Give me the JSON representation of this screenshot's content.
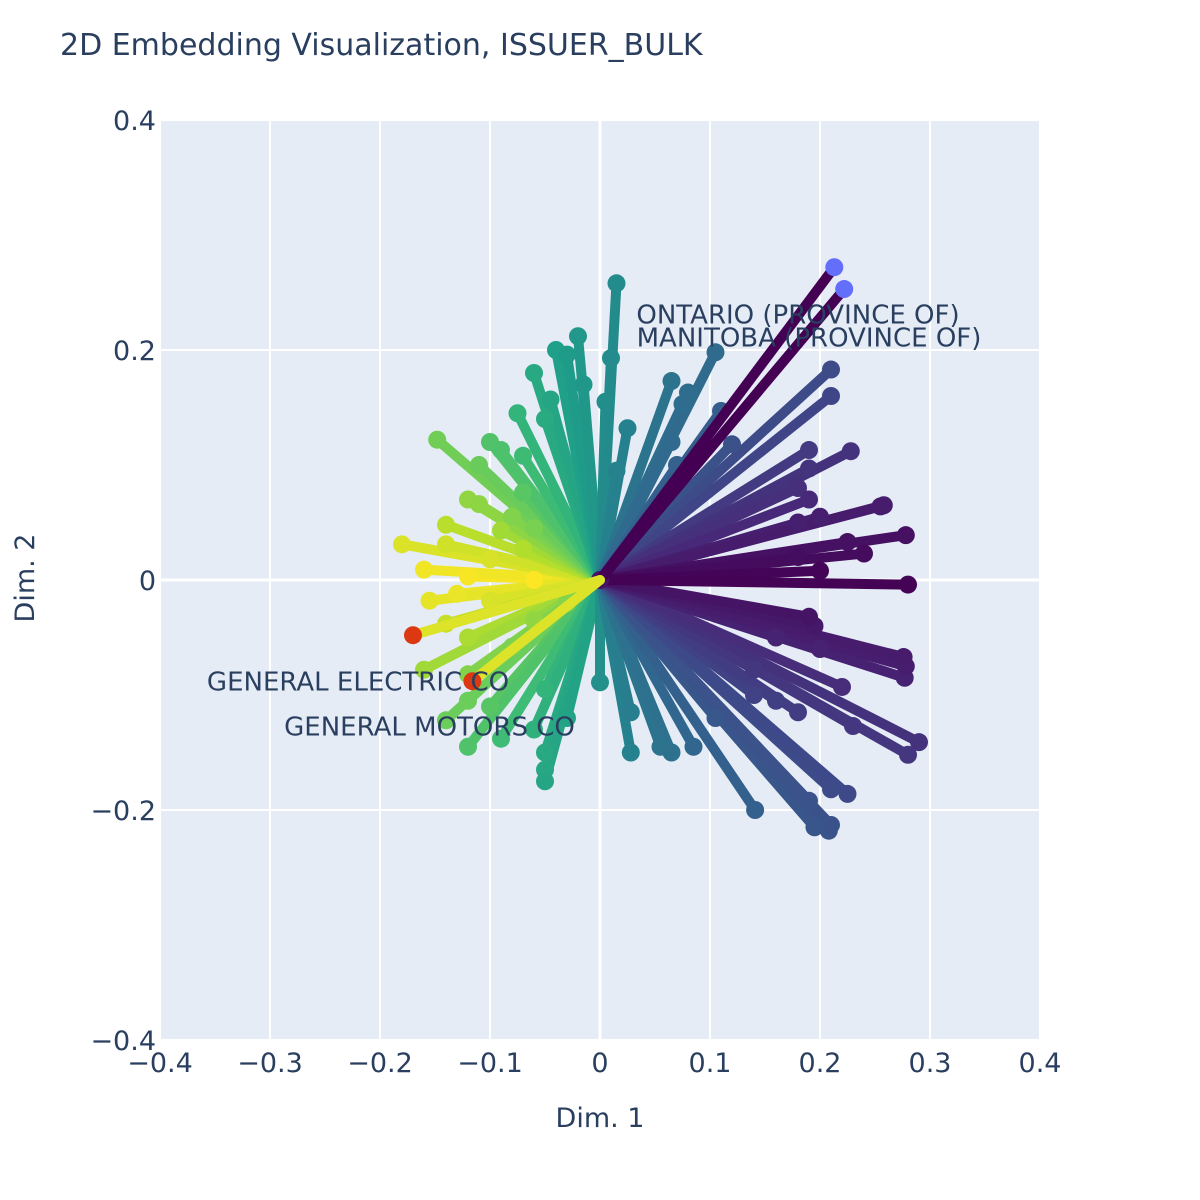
{
  "chart_data": {
    "type": "scatter",
    "title": "2D Embedding Visualization, ISSUER_BULK",
    "xlabel": "Dim. 1",
    "ylabel": "Dim. 2",
    "xlim": [
      -0.4,
      0.4
    ],
    "ylim": [
      -0.4,
      0.4
    ],
    "xticks": [
      -0.4,
      -0.3,
      -0.2,
      -0.1,
      0,
      0.1,
      0.2,
      0.3,
      0.4
    ],
    "xtick_labels": [
      "−0.4",
      "−0.3",
      "−0.2",
      "−0.1",
      "0",
      "0.1",
      "0.2",
      "0.3",
      "0.4"
    ],
    "yticks": [
      -0.4,
      -0.2,
      0,
      0.2,
      0.4
    ],
    "ytick_labels": [
      "−0.4",
      "−0.2",
      "0",
      "0.2",
      "0.4"
    ],
    "grid": true,
    "origin": [
      0,
      0
    ],
    "colorscale": "viridis",
    "background_color": "#e5ecf6",
    "highlight_colors": {
      "ontario_manitoba": "#636efa",
      "general": "#dc3912"
    },
    "highlighted": [
      {
        "name": "ONTARIO (PROVINCE OF)",
        "x": 0.213,
        "y": 0.272,
        "color": "#636efa",
        "label": "ONTARIO (PROVINCE OF)",
        "label_x": 0.18,
        "label_y": 0.223
      },
      {
        "name": "MANITOBA (PROVINCE OF)",
        "x": 0.222,
        "y": 0.253,
        "color": "#636efa",
        "label": "MANITOBA (PROVINCE OF)",
        "label_x": 0.19,
        "label_y": 0.203
      },
      {
        "name": "GENERAL ELECTRIC CO",
        "x": -0.17,
        "y": -0.048,
        "color": "#dc3912",
        "label": "GENERAL ELECTRIC CO",
        "label_x": -0.22,
        "label_y": -0.096
      },
      {
        "name": "GENERAL MOTORS CO",
        "x": -0.116,
        "y": -0.088,
        "color": "#dc3912",
        "label": "GENERAL MOTORS CO",
        "label_x": -0.155,
        "label_y": -0.135
      }
    ],
    "points": [
      {
        "x": 0.015,
        "y": 0.258
      },
      {
        "x": -0.02,
        "y": 0.212
      },
      {
        "x": -0.04,
        "y": 0.2
      },
      {
        "x": -0.03,
        "y": 0.196
      },
      {
        "x": 0.01,
        "y": 0.193
      },
      {
        "x": 0.105,
        "y": 0.198
      },
      {
        "x": 0.065,
        "y": 0.173
      },
      {
        "x": -0.06,
        "y": 0.18
      },
      {
        "x": -0.015,
        "y": 0.17
      },
      {
        "x": 0.21,
        "y": 0.183
      },
      {
        "x": 0.21,
        "y": 0.16
      },
      {
        "x": 0.08,
        "y": 0.163
      },
      {
        "x": -0.045,
        "y": 0.157
      },
      {
        "x": -0.075,
        "y": 0.145
      },
      {
        "x": 0.005,
        "y": 0.155
      },
      {
        "x": 0.11,
        "y": 0.147
      },
      {
        "x": 0.075,
        "y": 0.153
      },
      {
        "x": -0.05,
        "y": 0.14
      },
      {
        "x": 0.025,
        "y": 0.132
      },
      {
        "x": -0.1,
        "y": 0.12
      },
      {
        "x": -0.148,
        "y": 0.122
      },
      {
        "x": 0.065,
        "y": 0.12
      },
      {
        "x": 0.12,
        "y": 0.118
      },
      {
        "x": -0.09,
        "y": 0.113
      },
      {
        "x": 0.228,
        "y": 0.112
      },
      {
        "x": 0.19,
        "y": 0.113
      },
      {
        "x": -0.07,
        "y": 0.108
      },
      {
        "x": 0.015,
        "y": 0.095
      },
      {
        "x": 0.07,
        "y": 0.1
      },
      {
        "x": 0.19,
        "y": 0.097
      },
      {
        "x": -0.11,
        "y": 0.1
      },
      {
        "x": 0.18,
        "y": 0.08
      },
      {
        "x": -0.07,
        "y": 0.076
      },
      {
        "x": 0.19,
        "y": 0.07
      },
      {
        "x": -0.12,
        "y": 0.07
      },
      {
        "x": 0.258,
        "y": 0.065
      },
      {
        "x": 0.255,
        "y": 0.064
      },
      {
        "x": -0.11,
        "y": 0.066
      },
      {
        "x": 0.2,
        "y": 0.055
      },
      {
        "x": -0.08,
        "y": 0.055
      },
      {
        "x": 0.18,
        "y": 0.05
      },
      {
        "x": -0.14,
        "y": 0.048
      },
      {
        "x": -0.06,
        "y": 0.045
      },
      {
        "x": 0.278,
        "y": 0.039
      },
      {
        "x": -0.09,
        "y": 0.043
      },
      {
        "x": 0.225,
        "y": 0.033
      },
      {
        "x": -0.18,
        "y": 0.031
      },
      {
        "x": -0.14,
        "y": 0.031
      },
      {
        "x": -0.07,
        "y": 0.027
      },
      {
        "x": 0.24,
        "y": 0.023
      },
      {
        "x": 0.18,
        "y": 0.02
      },
      {
        "x": -0.1,
        "y": 0.018
      },
      {
        "x": -0.16,
        "y": 0.009
      },
      {
        "x": -0.12,
        "y": 0.003
      },
      {
        "x": 0.2,
        "y": 0.008
      },
      {
        "x": 0.28,
        "y": -0.004
      },
      {
        "x": -0.06,
        "y": 0.0
      },
      {
        "x": -0.13,
        "y": -0.012
      },
      {
        "x": -0.155,
        "y": -0.018
      },
      {
        "x": -0.1,
        "y": -0.018
      },
      {
        "x": -0.03,
        "y": -0.02
      },
      {
        "x": 0.19,
        "y": -0.032
      },
      {
        "x": -0.14,
        "y": -0.038
      },
      {
        "x": 0.195,
        "y": -0.04
      },
      {
        "x": -0.06,
        "y": -0.035
      },
      {
        "x": 0.16,
        "y": -0.05
      },
      {
        "x": -0.12,
        "y": -0.05
      },
      {
        "x": 0.2,
        "y": -0.06
      },
      {
        "x": -0.08,
        "y": -0.058
      },
      {
        "x": 0.276,
        "y": -0.067
      },
      {
        "x": 0.278,
        "y": -0.075
      },
      {
        "x": 0.277,
        "y": -0.085
      },
      {
        "x": -0.16,
        "y": -0.078
      },
      {
        "x": 0.14,
        "y": -0.078
      },
      {
        "x": -0.12,
        "y": -0.082
      },
      {
        "x": 0.22,
        "y": -0.093
      },
      {
        "x": 0.0,
        "y": -0.089
      },
      {
        "x": -0.05,
        "y": -0.095
      },
      {
        "x": 0.14,
        "y": -0.1
      },
      {
        "x": -0.12,
        "y": -0.105
      },
      {
        "x": 0.16,
        "y": -0.105
      },
      {
        "x": 0.18,
        "y": -0.115
      },
      {
        "x": -0.1,
        "y": -0.11
      },
      {
        "x": 0.028,
        "y": -0.115
      },
      {
        "x": 0.105,
        "y": -0.12
      },
      {
        "x": -0.03,
        "y": -0.12
      },
      {
        "x": -0.14,
        "y": -0.122
      },
      {
        "x": 0.23,
        "y": -0.127
      },
      {
        "x": -0.06,
        "y": -0.13
      },
      {
        "x": -0.09,
        "y": -0.138
      },
      {
        "x": 0.29,
        "y": -0.141
      },
      {
        "x": 0.085,
        "y": -0.145
      },
      {
        "x": -0.12,
        "y": -0.145
      },
      {
        "x": 0.055,
        "y": -0.145
      },
      {
        "x": 0.28,
        "y": -0.152
      },
      {
        "x": 0.028,
        "y": -0.15
      },
      {
        "x": 0.065,
        "y": -0.15
      },
      {
        "x": -0.05,
        "y": -0.15
      },
      {
        "x": -0.05,
        "y": -0.165
      },
      {
        "x": -0.05,
        "y": -0.175
      },
      {
        "x": 0.21,
        "y": -0.182
      },
      {
        "x": 0.225,
        "y": -0.186
      },
      {
        "x": 0.19,
        "y": -0.192
      },
      {
        "x": 0.141,
        "y": -0.2
      },
      {
        "x": 0.195,
        "y": -0.215
      },
      {
        "x": 0.21,
        "y": -0.213
      },
      {
        "x": 0.208,
        "y": -0.218
      }
    ]
  }
}
